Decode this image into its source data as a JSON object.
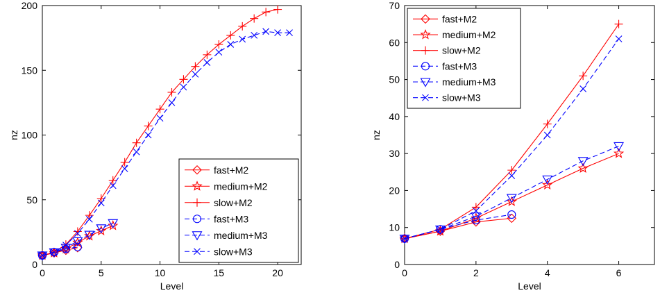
{
  "chart_data": [
    {
      "type": "line",
      "xlabel": "Level",
      "ylabel": "nz",
      "xlim": [
        0,
        22
      ],
      "ylim": [
        0,
        200
      ],
      "xticks": [
        0,
        5,
        10,
        15,
        20
      ],
      "yticks": [
        0,
        50,
        100,
        150,
        200
      ],
      "grid": false,
      "legend": "bottom-right",
      "series": [
        {
          "name": "fast+M2",
          "color": "#ff0000",
          "marker": "diamond",
          "dash": "solid",
          "x": [
            0,
            1,
            2,
            3
          ],
          "y": [
            7,
            9,
            11,
            13
          ]
        },
        {
          "name": "medium+M2",
          "color": "#ff0000",
          "marker": "star",
          "dash": "solid",
          "x": [
            0,
            1,
            2,
            3,
            4,
            5,
            6
          ],
          "y": [
            7,
            9,
            12,
            17,
            22,
            26,
            30
          ]
        },
        {
          "name": "slow+M2",
          "color": "#ff0000",
          "marker": "plus",
          "dash": "solid",
          "x": [
            0,
            1,
            2,
            3,
            4,
            5,
            6,
            7,
            8,
            9,
            10,
            11,
            12,
            13,
            14,
            15,
            16,
            17,
            18,
            19,
            20
          ],
          "y": [
            7,
            9.5,
            15.5,
            25.5,
            38,
            51,
            65,
            79,
            94,
            107,
            120,
            133,
            143,
            153,
            162,
            170,
            177,
            184,
            190,
            195,
            197
          ]
        },
        {
          "name": "fast+M3",
          "color": "#0000ff",
          "marker": "circle",
          "dash": "dashed",
          "x": [
            0,
            1,
            2,
            3
          ],
          "y": [
            7,
            9.5,
            12,
            13.5
          ]
        },
        {
          "name": "medium+M3",
          "color": "#0000ff",
          "marker": "triangle-down",
          "dash": "dashed",
          "x": [
            0,
            1,
            2,
            3,
            4,
            5,
            6
          ],
          "y": [
            7,
            9.5,
            13,
            18,
            23,
            28,
            32
          ]
        },
        {
          "name": "slow+M3",
          "color": "#0000ff",
          "marker": "x",
          "dash": "dashed",
          "x": [
            0,
            1,
            2,
            3,
            4,
            5,
            6,
            7,
            8,
            9,
            10,
            11,
            12,
            13,
            14,
            15,
            16,
            17,
            18,
            19,
            20,
            21
          ],
          "y": [
            7,
            9.5,
            15,
            24,
            35,
            47.5,
            61,
            74,
            87,
            100,
            113,
            125,
            137,
            147,
            156,
            164,
            170,
            174,
            177,
            180,
            179,
            179
          ]
        }
      ]
    },
    {
      "type": "line",
      "xlabel": "Level",
      "ylabel": "nz",
      "xlim": [
        0,
        7
      ],
      "ylim": [
        0,
        70
      ],
      "xticks": [
        0,
        2,
        4,
        6
      ],
      "yticks": [
        0,
        10,
        20,
        30,
        40,
        50,
        60,
        70
      ],
      "grid": false,
      "legend": "top-left",
      "series": [
        {
          "name": "fast+M2",
          "color": "#ff0000",
          "marker": "diamond",
          "dash": "solid",
          "x": [
            0,
            1,
            2,
            3
          ],
          "y": [
            7,
            9,
            11.5,
            12.5
          ]
        },
        {
          "name": "medium+M2",
          "color": "#ff0000",
          "marker": "star",
          "dash": "solid",
          "x": [
            0,
            1,
            2,
            3,
            4,
            5,
            6
          ],
          "y": [
            7,
            9,
            12.5,
            17,
            21.5,
            26,
            30
          ]
        },
        {
          "name": "slow+M2",
          "color": "#ff0000",
          "marker": "plus",
          "dash": "solid",
          "x": [
            0,
            1,
            2,
            3,
            4,
            5,
            6
          ],
          "y": [
            7,
            9.5,
            15.5,
            25.5,
            38,
            51,
            65
          ]
        },
        {
          "name": "fast+M3",
          "color": "#0000ff",
          "marker": "circle",
          "dash": "dashed",
          "x": [
            0,
            1,
            2,
            3
          ],
          "y": [
            7,
            9.5,
            12,
            13.5
          ]
        },
        {
          "name": "medium+M3",
          "color": "#0000ff",
          "marker": "triangle-down",
          "dash": "dashed",
          "x": [
            0,
            1,
            2,
            3,
            4,
            5,
            6
          ],
          "y": [
            7,
            9.5,
            13,
            18,
            23,
            28,
            32
          ]
        },
        {
          "name": "slow+M3",
          "color": "#0000ff",
          "marker": "x",
          "dash": "dashed",
          "x": [
            0,
            1,
            2,
            3,
            4,
            5,
            6
          ],
          "y": [
            7,
            9.5,
            14.5,
            24,
            35,
            47.5,
            61
          ]
        }
      ]
    }
  ]
}
